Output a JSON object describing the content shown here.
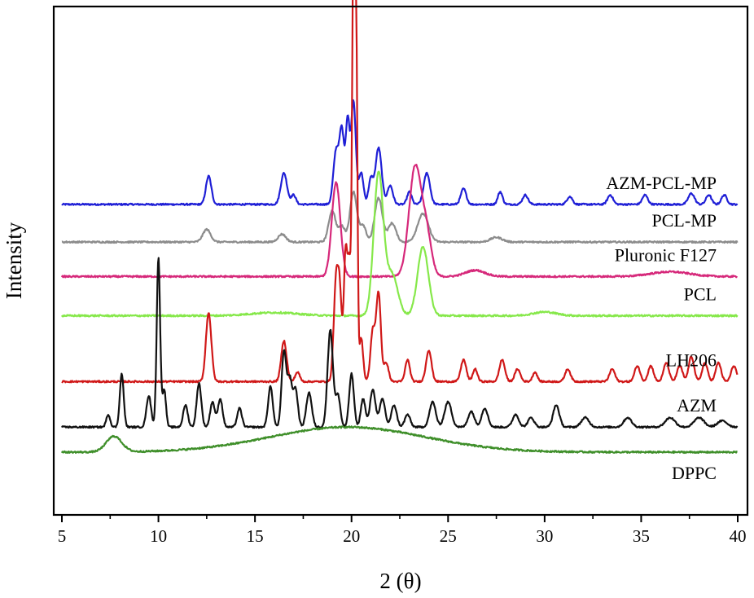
{
  "chart_data": {
    "type": "line",
    "xlabel": "2 (θ)",
    "ylabel": "Intensity",
    "xlim": [
      5,
      40
    ],
    "xticks": [
      5,
      10,
      15,
      20,
      25,
      30,
      35,
      40
    ],
    "grid": false,
    "legend": "none",
    "series": [
      {
        "name": "AZM-PCL-MP",
        "color": "#1f1fd6",
        "offset": 7.9,
        "scale": 0.026,
        "peaks": [
          [
            12.6,
            0.9,
            0.14
          ],
          [
            16.5,
            1.0,
            0.16
          ],
          [
            17.0,
            0.3,
            0.12
          ],
          [
            19.2,
            1.7,
            0.14
          ],
          [
            19.5,
            2.3,
            0.12
          ],
          [
            19.8,
            2.6,
            0.1
          ],
          [
            20.1,
            3.3,
            0.12
          ],
          [
            20.5,
            1.0,
            0.12
          ],
          [
            21.0,
            0.8,
            0.12
          ],
          [
            21.4,
            1.8,
            0.16
          ],
          [
            22.0,
            0.6,
            0.14
          ],
          [
            23.0,
            0.4,
            0.12
          ],
          [
            23.9,
            1.0,
            0.16
          ],
          [
            25.8,
            0.5,
            0.14
          ],
          [
            27.7,
            0.4,
            0.12
          ],
          [
            29.0,
            0.3,
            0.14
          ],
          [
            31.3,
            0.25,
            0.14
          ],
          [
            33.4,
            0.3,
            0.14
          ],
          [
            35.2,
            0.3,
            0.14
          ],
          [
            37.6,
            0.35,
            0.16
          ],
          [
            38.5,
            0.3,
            0.14
          ],
          [
            39.3,
            0.3,
            0.14
          ]
        ]
      },
      {
        "name": "PCL-MP",
        "color": "#8c8c8c",
        "offset": 6.7,
        "scale": 0.026,
        "peaks": [
          [
            12.5,
            0.4,
            0.2
          ],
          [
            16.4,
            0.25,
            0.2
          ],
          [
            19.0,
            1.0,
            0.18
          ],
          [
            19.5,
            0.5,
            0.16
          ],
          [
            20.1,
            1.6,
            0.18
          ],
          [
            20.6,
            0.5,
            0.16
          ],
          [
            21.4,
            1.4,
            0.2
          ],
          [
            22.1,
            0.6,
            0.2
          ],
          [
            23.7,
            0.9,
            0.28
          ],
          [
            27.5,
            0.15,
            0.3
          ]
        ]
      },
      {
        "name": "Pluronic F127",
        "color": "#d6287a",
        "offset": 5.6,
        "scale": 0.026,
        "peaks": [
          [
            19.2,
            3.0,
            0.22
          ],
          [
            23.3,
            3.5,
            0.32
          ],
          [
            23.9,
            1.2,
            0.25
          ],
          [
            26.4,
            0.2,
            0.5
          ],
          [
            36.5,
            0.15,
            1.0
          ]
        ]
      },
      {
        "name": "PCL",
        "color": "#86e84a",
        "offset": 4.35,
        "scale": 0.026,
        "peaks": [
          [
            21.4,
            4.5,
            0.25
          ],
          [
            22.1,
            1.3,
            0.3
          ],
          [
            23.7,
            2.2,
            0.28
          ],
          [
            16.0,
            0.1,
            1.2
          ],
          [
            30.0,
            0.12,
            0.6
          ]
        ]
      },
      {
        "name": "LH206",
        "color": "#d01818",
        "offset": 2.25,
        "scale": 0.026,
        "peaks": [
          [
            12.6,
            2.2,
            0.14
          ],
          [
            16.5,
            1.3,
            0.14
          ],
          [
            17.2,
            0.3,
            0.12
          ],
          [
            19.2,
            3.2,
            0.12
          ],
          [
            19.4,
            2.4,
            0.1
          ],
          [
            19.7,
            4.2,
            0.1
          ],
          [
            19.9,
            3.3,
            0.08
          ],
          [
            20.1,
            13.6,
            0.07
          ],
          [
            20.25,
            10.4,
            0.06
          ],
          [
            20.5,
            1.4,
            0.1
          ],
          [
            21.1,
            1.6,
            0.12
          ],
          [
            21.4,
            2.8,
            0.12
          ],
          [
            21.8,
            0.6,
            0.12
          ],
          [
            22.9,
            0.7,
            0.12
          ],
          [
            24.0,
            1.0,
            0.14
          ],
          [
            25.8,
            0.7,
            0.14
          ],
          [
            26.4,
            0.4,
            0.12
          ],
          [
            27.8,
            0.7,
            0.14
          ],
          [
            28.6,
            0.4,
            0.14
          ],
          [
            29.5,
            0.3,
            0.12
          ],
          [
            31.2,
            0.4,
            0.14
          ],
          [
            33.5,
            0.4,
            0.14
          ],
          [
            34.8,
            0.5,
            0.14
          ],
          [
            35.5,
            0.5,
            0.14
          ],
          [
            36.3,
            0.6,
            0.14
          ],
          [
            37.0,
            0.5,
            0.14
          ],
          [
            37.6,
            0.8,
            0.14
          ],
          [
            38.3,
            0.6,
            0.14
          ],
          [
            39.0,
            0.6,
            0.14
          ],
          [
            39.8,
            0.5,
            0.14
          ]
        ]
      },
      {
        "name": "AZM",
        "color": "#111111",
        "offset": 0.8,
        "scale": 0.026,
        "peaks": [
          [
            7.4,
            0.4,
            0.1
          ],
          [
            8.1,
            1.7,
            0.1
          ],
          [
            9.5,
            1.0,
            0.12
          ],
          [
            10.0,
            5.4,
            0.09
          ],
          [
            10.3,
            1.2,
            0.09
          ],
          [
            11.4,
            0.7,
            0.12
          ],
          [
            12.1,
            1.4,
            0.12
          ],
          [
            12.8,
            0.8,
            0.12
          ],
          [
            13.2,
            0.9,
            0.12
          ],
          [
            14.2,
            0.6,
            0.12
          ],
          [
            15.8,
            1.3,
            0.12
          ],
          [
            16.5,
            2.4,
            0.12
          ],
          [
            16.8,
            1.5,
            0.12
          ],
          [
            17.1,
            1.2,
            0.12
          ],
          [
            17.8,
            1.1,
            0.14
          ],
          [
            18.9,
            3.1,
            0.14
          ],
          [
            19.3,
            1.0,
            0.12
          ],
          [
            20.0,
            1.7,
            0.12
          ],
          [
            20.6,
            0.9,
            0.12
          ],
          [
            21.1,
            1.2,
            0.14
          ],
          [
            21.6,
            0.9,
            0.14
          ],
          [
            22.2,
            0.7,
            0.14
          ],
          [
            22.9,
            0.4,
            0.14
          ],
          [
            24.2,
            0.8,
            0.16
          ],
          [
            25.0,
            0.8,
            0.18
          ],
          [
            26.2,
            0.5,
            0.16
          ],
          [
            26.9,
            0.6,
            0.16
          ],
          [
            28.5,
            0.4,
            0.16
          ],
          [
            29.3,
            0.3,
            0.16
          ],
          [
            30.6,
            0.7,
            0.16
          ],
          [
            32.1,
            0.3,
            0.2
          ],
          [
            34.3,
            0.3,
            0.2
          ],
          [
            36.5,
            0.3,
            0.25
          ],
          [
            38.0,
            0.3,
            0.25
          ],
          [
            39.2,
            0.2,
            0.25
          ]
        ]
      },
      {
        "name": "DPPC",
        "color": "#3f8f2a",
        "offset": 0.0,
        "scale": 0.026,
        "peaks": [
          [
            7.7,
            0.5,
            0.4
          ],
          [
            19.8,
            0.8,
            4.0
          ]
        ]
      }
    ]
  }
}
